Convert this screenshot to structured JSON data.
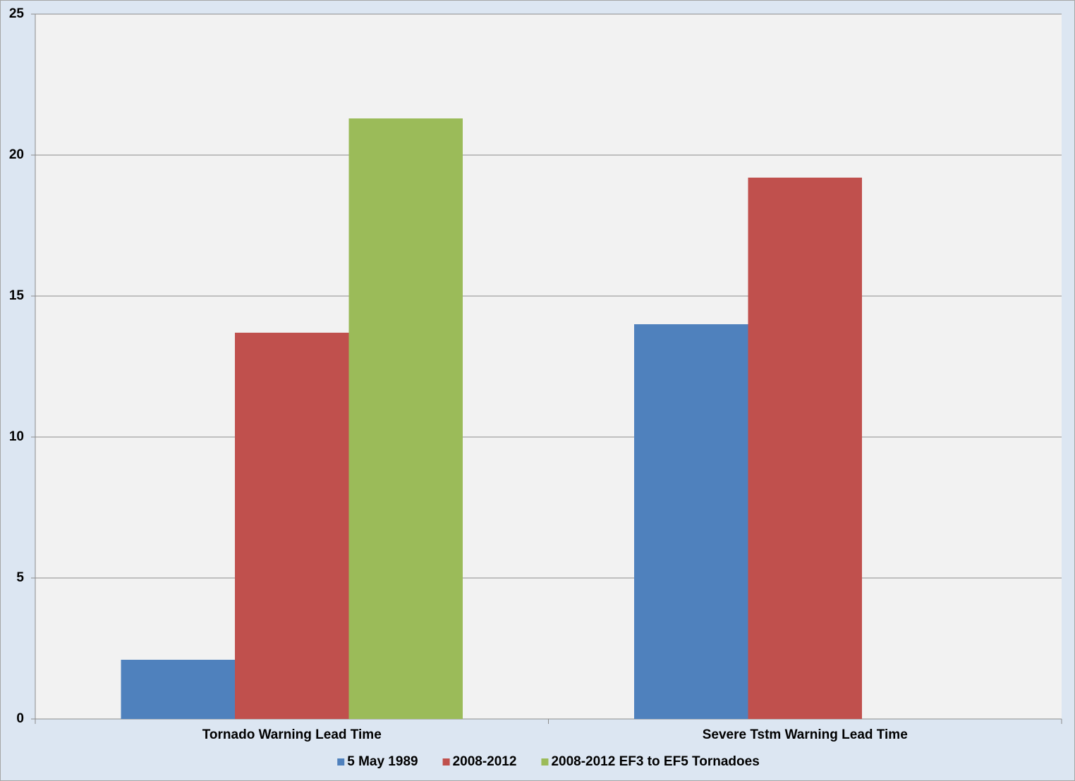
{
  "chart_data": {
    "type": "bar",
    "categories": [
      "Tornado Warning Lead Time",
      "Severe Tstm Warning Lead Time"
    ],
    "series": [
      {
        "name": "5 May 1989",
        "color": "#4f81bd",
        "values": [
          2.1,
          14
        ]
      },
      {
        "name": "2008-2012",
        "color": "#c0504d",
        "values": [
          13.7,
          19.2
        ]
      },
      {
        "name": "2008-2012 EF3 to EF5 Tornadoes",
        "color": "#9bbb59",
        "values": [
          21.3,
          null
        ]
      }
    ],
    "ylim": [
      0,
      25
    ],
    "yticks": [
      0,
      5,
      10,
      15,
      20,
      25
    ],
    "grid": true,
    "legend": "bottom"
  }
}
